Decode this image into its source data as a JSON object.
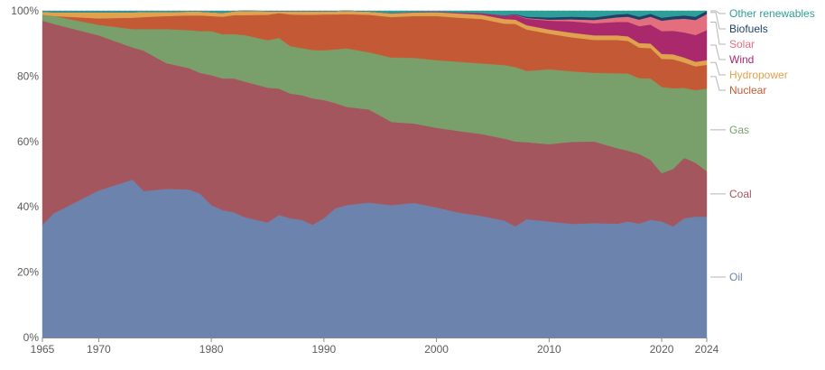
{
  "chart_data": {
    "type": "area",
    "stacked": true,
    "normalized_percent": true,
    "title": "",
    "xlabel": "",
    "ylabel": "",
    "ylim": [
      0,
      100
    ],
    "xlim": [
      1965,
      2024
    ],
    "grid": "horizontal dashed",
    "legend_position": "right, labels at series ends",
    "y_ticks": [
      0,
      20,
      40,
      60,
      80,
      100
    ],
    "y_tick_labels": [
      "0%",
      "20%",
      "40%",
      "60%",
      "80%",
      "100%"
    ],
    "x_ticks": [
      1965,
      1970,
      1980,
      1990,
      2000,
      2010,
      2020,
      2024
    ],
    "x_tick_labels": [
      "1965",
      "1970",
      "1980",
      "1990",
      "2000",
      "2010",
      "2020",
      "2024"
    ],
    "x": [
      1965,
      1966,
      1970,
      1973,
      1974,
      1976,
      1978,
      1979,
      1980,
      1981,
      1982,
      1983,
      1985,
      1986,
      1987,
      1988,
      1989,
      1990,
      1991,
      1992,
      1994,
      1996,
      1998,
      2000,
      2002,
      2004,
      2006,
      2007,
      2008,
      2010,
      2012,
      2014,
      2016,
      2017,
      2018,
      2019,
      2020,
      2021,
      2022,
      2023,
      2024
    ],
    "series": [
      {
        "name": "Oil",
        "color": "#6c84ad",
        "values": [
          34.5,
          38,
          45,
          48.3,
          44.8,
          45.5,
          45.3,
          44,
          40.5,
          39,
          38.3,
          37,
          35.2,
          37.5,
          36.5,
          36,
          34.5,
          36.5,
          39.5,
          40.5,
          41.3,
          40.5,
          41.2,
          39.8,
          38.2,
          37.2,
          35.8,
          34,
          36.2,
          35.5,
          34.8,
          35,
          34.8,
          35.5,
          35,
          36,
          35.5,
          34,
          36.5,
          37,
          37
        ]
      },
      {
        "name": "Coal",
        "color": "#a4565e",
        "values": [
          62.5,
          58,
          47.5,
          40.5,
          43,
          38.5,
          37.2,
          37,
          39.8,
          40.3,
          41,
          41.8,
          41.3,
          38.7,
          38.2,
          38.2,
          38.7,
          36.2,
          32.3,
          30.1,
          28.5,
          25.5,
          24.3,
          24.4,
          25,
          25.1,
          25.1,
          26,
          23.6,
          23.7,
          25.1,
          25,
          23.2,
          21.7,
          21.4,
          18.4,
          14.8,
          17.6,
          18.5,
          16.5,
          13.9
        ]
      },
      {
        "name": "Gas",
        "color": "#799f6a",
        "values": [
          1.8,
          2.4,
          3.2,
          5.6,
          6.6,
          10.4,
          11.6,
          12.8,
          13.5,
          13.5,
          13.6,
          14.3,
          14.5,
          15.5,
          14.5,
          14.4,
          14.8,
          15.2,
          16.4,
          17.9,
          17.5,
          19.7,
          20.1,
          20.7,
          21.2,
          21.6,
          22.5,
          22.8,
          21.8,
          22.9,
          21.6,
          21,
          22.9,
          23.6,
          23.3,
          24.9,
          26.4,
          24.7,
          21.4,
          22.2,
          25.3
        ]
      },
      {
        "name": "Nuclear",
        "color": "#c45a35",
        "values": [
          0,
          0,
          2,
          3.5,
          3.7,
          4,
          4.5,
          4.8,
          4.6,
          5.4,
          5.8,
          6.2,
          7.8,
          7.6,
          9.7,
          10.2,
          10.8,
          11,
          10.7,
          10.5,
          11.5,
          12.4,
          12.8,
          13.5,
          13.5,
          13.6,
          12.7,
          13.2,
          12.7,
          10.9,
          10.4,
          10.1,
          10.2,
          10,
          9.4,
          9.3,
          8.6,
          8.9,
          7.8,
          7.3,
          7.3
        ]
      },
      {
        "name": "Hydropower",
        "color": "#e0a24e",
        "values": [
          0.9,
          1.2,
          1.9,
          1.7,
          1.6,
          1.3,
          1.2,
          1.2,
          1.2,
          1.2,
          1.2,
          1.3,
          1.1,
          0.6,
          1,
          1.1,
          1.1,
          1,
          1,
          1,
          1,
          1.1,
          1.1,
          1.2,
          1.3,
          1.3,
          1.4,
          1.3,
          1.3,
          1.3,
          1.4,
          1.4,
          1.4,
          1.4,
          1.4,
          1.4,
          1.5,
          1.5,
          1.5,
          1.4,
          1.4
        ]
      },
      {
        "name": "Wind",
        "color": "#a9296c",
        "values": [
          0,
          0,
          0,
          0,
          0,
          0,
          0,
          0,
          0,
          0,
          0,
          0,
          0,
          0,
          0,
          0,
          0,
          0,
          0,
          0,
          0,
          0.1,
          0.2,
          0.2,
          0.3,
          0.5,
          1,
          1.4,
          2,
          2.7,
          3.5,
          3.7,
          4.1,
          4.4,
          5.2,
          5.8,
          7,
          7.2,
          7.7,
          8.2,
          9.2
        ]
      },
      {
        "name": "Solar",
        "color": "#e36e7e",
        "values": [
          0,
          0,
          0,
          0,
          0,
          0,
          0,
          0,
          0,
          0,
          0,
          0,
          0,
          0,
          0,
          0,
          0,
          0,
          0,
          0,
          0,
          0,
          0,
          0,
          0,
          0,
          0,
          0.1,
          0.2,
          0.3,
          0.6,
          1,
          1.4,
          1.6,
          2,
          2.4,
          3.2,
          3.5,
          4.2,
          4.6,
          4.9
        ]
      },
      {
        "name": "Biofuels",
        "color": "#1e3f66",
        "values": [
          0,
          0,
          0,
          0,
          0,
          0,
          0,
          0,
          0,
          0,
          0,
          0,
          0,
          0,
          0,
          0,
          0,
          0,
          0,
          0,
          0,
          0,
          0,
          0,
          0,
          0,
          0.1,
          0.2,
          0.4,
          0.7,
          0.8,
          0.8,
          0.9,
          0.9,
          0.9,
          0.9,
          0.9,
          0.9,
          1,
          1,
          1
        ]
      },
      {
        "name": "Other renewables",
        "color": "#2e9e98",
        "values": [
          0.3,
          0.4,
          0.4,
          0.4,
          0.3,
          0.3,
          0.2,
          0.2,
          0.4,
          0.6,
          0.1,
          0,
          0.1,
          0.1,
          0.1,
          0.1,
          0.1,
          0.1,
          0.1,
          0,
          0.2,
          0.7,
          0.3,
          0.2,
          0.5,
          0.7,
          1.4,
          1,
          1.8,
          2,
          1.8,
          2,
          1.1,
          0.9,
          1.8,
          0.9,
          2.1,
          1.7,
          1.4,
          1.8,
          0
        ]
      }
    ]
  }
}
